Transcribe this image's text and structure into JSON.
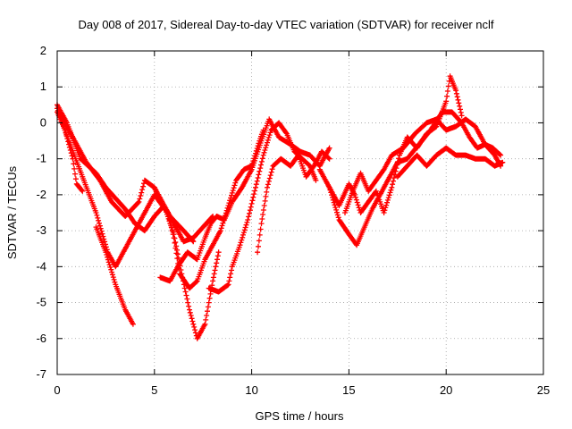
{
  "chart_data": {
    "type": "scatter",
    "title": "Day 008 of 2017, Sidereal Day-to-day VTEC variation (SDTVAR) for receiver nclf",
    "xlabel": "GPS time / hours",
    "ylabel": "SDTVAR / TECUs",
    "xlim": [
      0,
      25
    ],
    "ylim": [
      -7,
      2
    ],
    "xticks": [
      0,
      5,
      10,
      15,
      20,
      25
    ],
    "yticks": [
      -7,
      -6,
      -5,
      -4,
      -3,
      -2,
      -1,
      0,
      1,
      2
    ],
    "grid": true,
    "legend": "none",
    "marker": "plus",
    "color": "#ff0000",
    "series": [
      {
        "x": [
          0.0,
          0.5,
          1.2,
          2.0,
          2.5,
          3.0,
          3.5,
          4.0,
          4.5,
          5.0,
          5.5,
          6.0,
          6.5,
          7.0,
          7.5,
          8.0
        ],
        "y": [
          0.5,
          0.0,
          -1.0,
          -1.4,
          -1.8,
          -2.1,
          -2.4,
          -2.8,
          -3.0,
          -2.6,
          -2.3,
          -2.8,
          -3.3,
          -3.2,
          -2.9,
          -2.6
        ]
      },
      {
        "x": [
          0.0,
          0.6,
          1.3,
          2.0,
          2.6,
          3.0,
          3.5,
          4.2,
          5.0,
          5.8,
          6.5,
          7.0
        ],
        "y": [
          0.4,
          -0.5,
          -1.5,
          -2.5,
          -3.6,
          -4.0,
          -3.5,
          -2.8,
          -2.0,
          -2.6,
          -3.0,
          -3.3
        ]
      },
      {
        "x": [
          0.0,
          0.4,
          0.8,
          1.0,
          1.3
        ],
        "y": [
          0.3,
          -0.2,
          -1.0,
          -1.7,
          -1.9
        ]
      },
      {
        "x": [
          2.0,
          2.5,
          3.0,
          3.5,
          3.9
        ],
        "y": [
          -2.9,
          -3.6,
          -4.5,
          -5.2,
          -5.6
        ]
      },
      {
        "x": [
          0.2,
          0.7,
          1.5,
          2.2,
          2.8,
          3.5,
          4.2,
          4.5,
          5.0,
          5.5,
          6.0,
          6.4,
          6.8,
          7.2,
          7.6,
          8.0,
          8.3
        ],
        "y": [
          0.2,
          -0.3,
          -1.1,
          -1.6,
          -2.2,
          -2.6,
          -2.2,
          -1.6,
          -1.8,
          -2.3,
          -3.1,
          -4.2,
          -5.2,
          -6.0,
          -5.6,
          -4.4,
          -3.6
        ]
      },
      {
        "x": [
          5.0,
          5.3,
          5.7,
          6.0,
          6.3,
          6.8,
          7.2,
          7.6,
          8.0,
          8.4,
          8.8,
          9.2,
          9.6,
          10.0,
          10.4,
          10.6
        ],
        "y": [
          -1.8,
          -2.2,
          -2.5,
          -3.2,
          -4.2,
          -4.6,
          -4.4,
          -3.8,
          -3.4,
          -3.0,
          -2.3,
          -1.6,
          -1.3,
          -1.2,
          -0.5,
          -0.2
        ]
      },
      {
        "x": [
          5.3,
          5.8,
          6.2,
          6.7,
          7.2,
          7.6,
          7.9,
          8.2,
          8.6,
          9.0,
          9.5,
          10.0,
          10.5,
          10.9,
          11.4,
          12.0,
          12.5,
          13.0,
          13.5,
          14.0
        ],
        "y": [
          -4.3,
          -4.4,
          -4.0,
          -3.6,
          -3.8,
          -3.2,
          -2.8,
          -2.6,
          -2.7,
          -2.2,
          -1.8,
          -1.3,
          -0.5,
          0.1,
          -0.4,
          -0.6,
          -0.8,
          -0.9,
          -1.2,
          -0.7
        ]
      },
      {
        "x": [
          7.8,
          8.3,
          8.8,
          9.0,
          9.4,
          9.8,
          10.2,
          10.6,
          11.0,
          11.4,
          11.8,
          12.2,
          12.6,
          13.0,
          13.3
        ],
        "y": [
          -4.6,
          -4.7,
          -4.5,
          -4.0,
          -3.4,
          -2.7,
          -1.8,
          -0.9,
          -0.2,
          0.0,
          -0.3,
          -0.8,
          -1.0,
          -1.2,
          -1.6
        ]
      },
      {
        "x": [
          10.3,
          10.5,
          10.8,
          11.1,
          11.5,
          12.0,
          12.4,
          12.8,
          13.2,
          13.6,
          14.0
        ],
        "y": [
          -3.6,
          -2.8,
          -1.8,
          -1.2,
          -1.0,
          -1.2,
          -0.9,
          -1.5,
          -1.2,
          -0.8,
          -1.0
        ]
      },
      {
        "x": [
          13.5,
          14.0,
          14.5,
          15.0,
          15.3,
          15.6,
          16.0,
          16.4,
          16.8,
          17.2,
          17.6,
          18.0,
          18.5,
          19.0,
          19.5,
          20.0,
          20.2,
          20.5,
          20.8
        ],
        "y": [
          -1.3,
          -1.8,
          -2.3,
          -1.7,
          -2.0,
          -2.5,
          -2.2,
          -1.9,
          -2.5,
          -1.8,
          -0.9,
          -0.4,
          -0.7,
          -0.3,
          -0.1,
          0.6,
          1.3,
          0.9,
          0.2
        ]
      },
      {
        "x": [
          14.0,
          14.5,
          15.0,
          15.4,
          15.8,
          16.2,
          16.6,
          17.0,
          17.5,
          18.0,
          18.6,
          19.2,
          19.8,
          20.3,
          20.8,
          21.2,
          21.6,
          22.0,
          22.4,
          22.8
        ],
        "y": [
          -1.8,
          -2.7,
          -3.1,
          -3.4,
          -2.9,
          -2.4,
          -2.0,
          -1.6,
          -1.1,
          -1.0,
          -0.6,
          -0.2,
          0.3,
          0.3,
          0.0,
          -0.4,
          -0.7,
          -0.6,
          -0.7,
          -0.9
        ]
      },
      {
        "x": [
          14.8,
          15.2,
          15.6,
          16.0,
          16.4,
          16.8,
          17.2,
          17.8,
          18.4,
          19.0,
          19.5,
          20.0,
          20.5,
          21.0,
          21.5,
          22.0,
          22.5,
          22.8
        ],
        "y": [
          -2.5,
          -1.9,
          -1.4,
          -1.9,
          -1.6,
          -1.3,
          -0.9,
          -0.7,
          -0.3,
          0.0,
          0.1,
          -0.2,
          -0.1,
          0.1,
          -0.1,
          -0.6,
          -0.9,
          -1.2
        ]
      },
      {
        "x": [
          17.5,
          18.0,
          18.5,
          19.0,
          19.5,
          20.0,
          20.5,
          21.0,
          21.5,
          22.0,
          22.5,
          22.9
        ],
        "y": [
          -1.5,
          -1.2,
          -0.9,
          -1.2,
          -0.9,
          -0.7,
          -0.9,
          -0.9,
          -1.0,
          -1.0,
          -1.2,
          -1.1
        ]
      }
    ]
  }
}
